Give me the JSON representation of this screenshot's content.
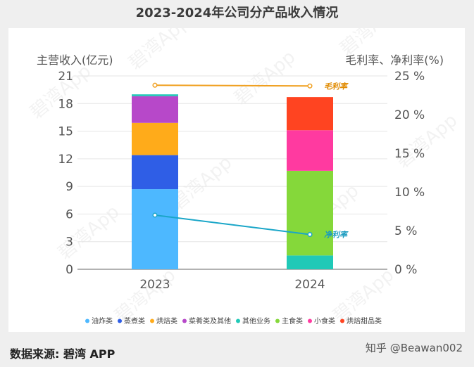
{
  "chart_data": {
    "type": "bar",
    "stacked": true,
    "title": "2023-2024年公司分产品收入情况",
    "ylabel": "主营收入(亿元)",
    "y2label": "毛利率、净利率(%)",
    "categories": [
      "2023",
      "2024"
    ],
    "ylim": [
      0,
      21
    ],
    "yticks": [
      0,
      3,
      6,
      9,
      12,
      15,
      18,
      21
    ],
    "y2lim": [
      0,
      25
    ],
    "y2ticks": [
      "0 %",
      "5 %",
      "10 %",
      "15 %",
      "20 %",
      "25 %"
    ],
    "y2tick_values": [
      0,
      5,
      10,
      15,
      20,
      25
    ],
    "series": [
      {
        "name": "油炸类",
        "color": "#4db8ff",
        "values": [
          8.7,
          0
        ]
      },
      {
        "name": "蒸煮类",
        "color": "#2f5ee6",
        "values": [
          3.7,
          0
        ]
      },
      {
        "name": "烘焙类",
        "color": "#ffab1a",
        "values": [
          3.5,
          0
        ]
      },
      {
        "name": "菜肴类及其他",
        "color": "#b748c9",
        "values": [
          2.9,
          0
        ]
      },
      {
        "name": "其他业务",
        "color": "#20c9b7",
        "values": [
          0.2,
          1.5
        ]
      },
      {
        "name": "主食类",
        "color": "#85d83a",
        "values": [
          0,
          9.2
        ]
      },
      {
        "name": "小食类",
        "color": "#ff3aa0",
        "values": [
          0,
          4.4
        ]
      },
      {
        "name": "烘焙甜品类",
        "color": "#ff4421",
        "values": [
          0,
          3.6
        ]
      }
    ],
    "lines": [
      {
        "name": "毛利率",
        "color": "#f0a020",
        "label_color": "#e08a00",
        "values": [
          23.8,
          23.7
        ]
      },
      {
        "name": "净利率",
        "color": "#1aa6c8",
        "label_color": "#1a9bbf",
        "values": [
          7.0,
          4.5
        ]
      }
    ],
    "legend_position": "bottom"
  },
  "source": "数据来源: 碧湾 APP",
  "credit": "知乎 @Beawan002",
  "watermark": "碧湾App"
}
